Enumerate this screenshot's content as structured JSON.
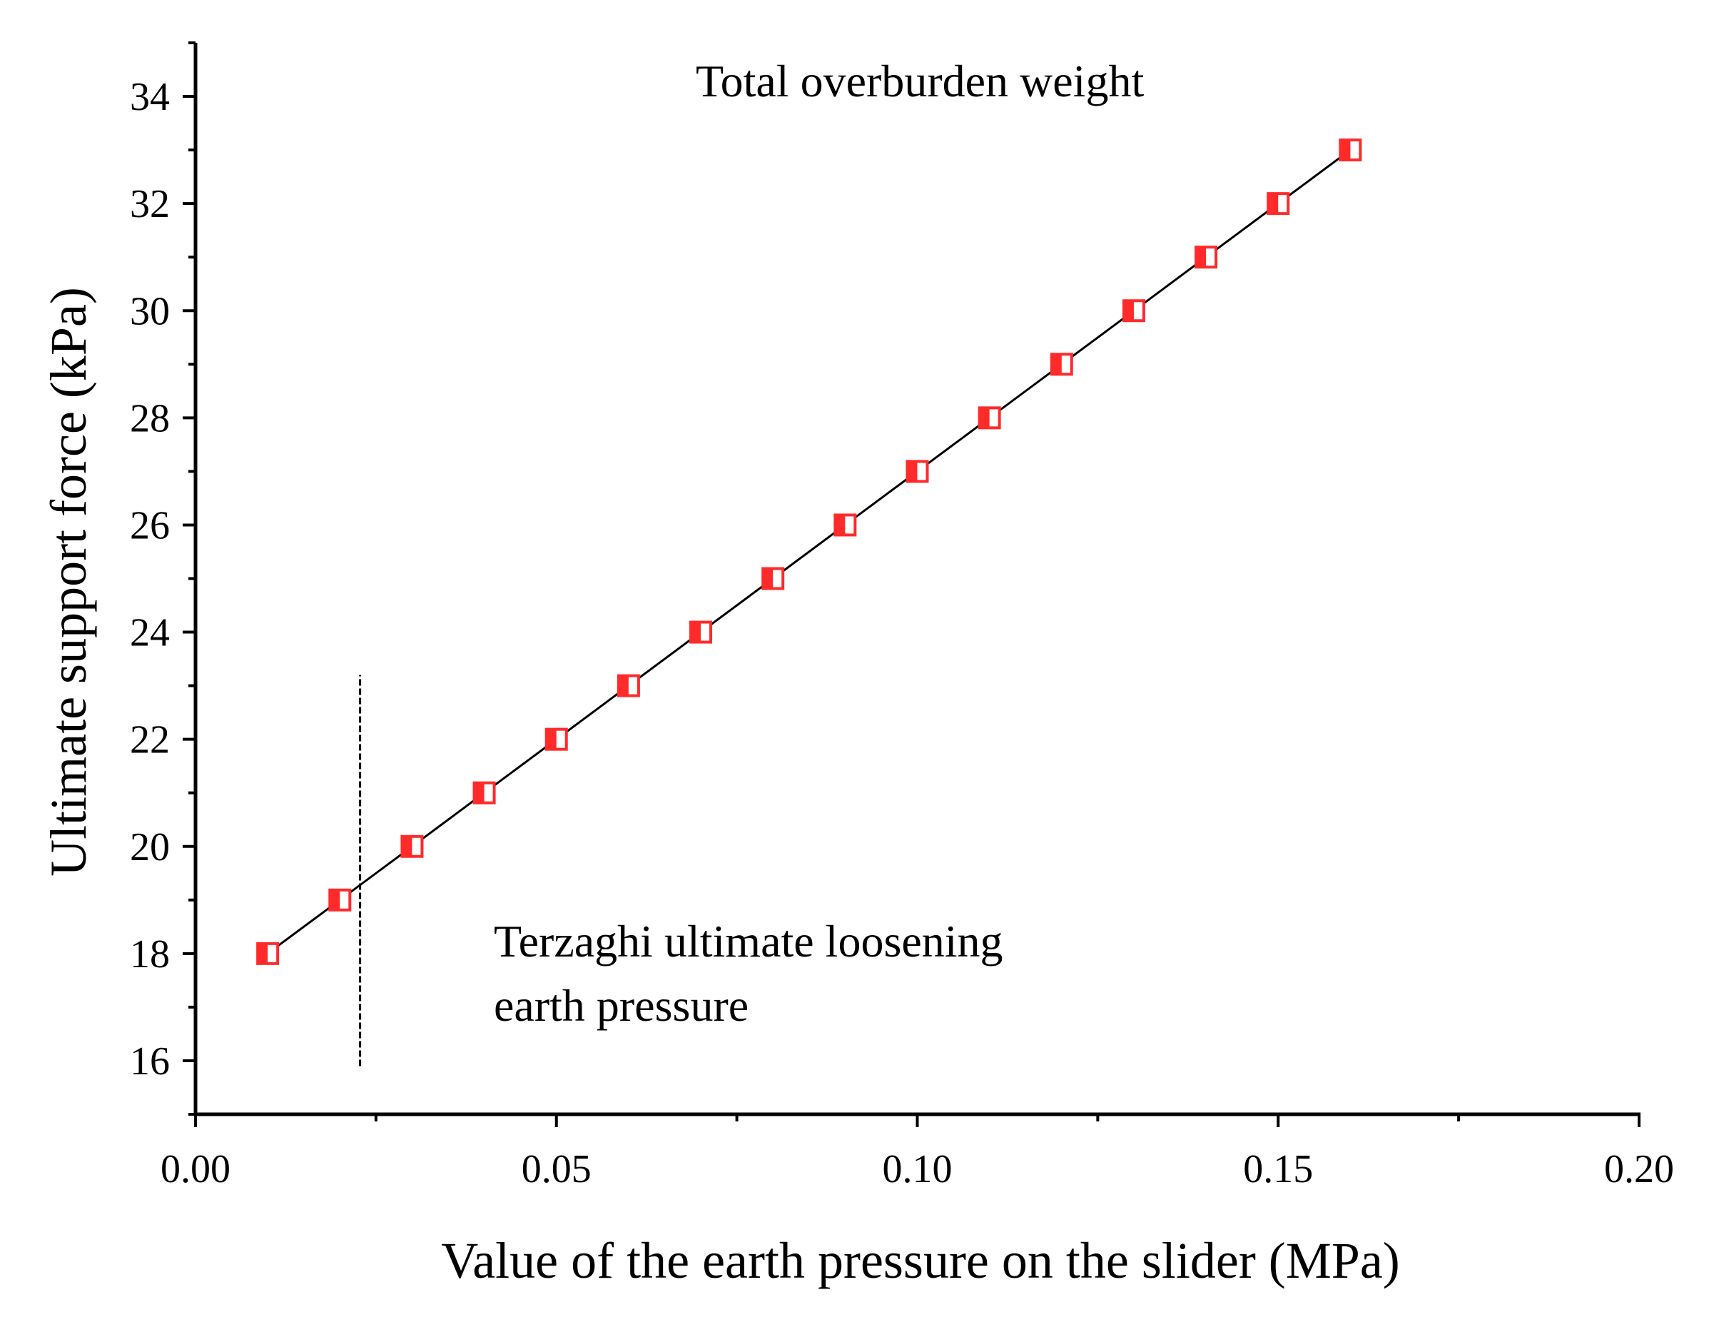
{
  "chart_data": {
    "type": "scatter",
    "title": "",
    "xlabel": "Value of the earth pressure on the slider (MPa)",
    "ylabel": "Ultimate support force (kPa)",
    "xlim": [
      0.0,
      0.2
    ],
    "ylim": [
      15.0,
      35.0
    ],
    "x_ticks": [
      "0.00",
      "0.05",
      "0.10",
      "0.15",
      "0.20"
    ],
    "y_ticks": [
      "16",
      "18",
      "20",
      "22",
      "24",
      "26",
      "28",
      "30",
      "32",
      "34"
    ],
    "x_tick_values": [
      0.0,
      0.05,
      0.1,
      0.15,
      0.2
    ],
    "y_tick_values": [
      16,
      18,
      20,
      22,
      24,
      26,
      28,
      30,
      32,
      34
    ],
    "grid": false,
    "series": [
      {
        "name": "Ultimate support force",
        "marker": "half-filled-square",
        "color": "#ff2a2a",
        "line_color": "#000000",
        "x": [
          0.01,
          0.02,
          0.03,
          0.04,
          0.05,
          0.06,
          0.07,
          0.08,
          0.09,
          0.1,
          0.11,
          0.12,
          0.13,
          0.14,
          0.15,
          0.16
        ],
        "y": [
          18,
          19,
          20,
          21,
          22,
          23,
          24,
          25,
          26,
          27,
          28,
          29,
          30,
          31,
          32,
          33
        ]
      }
    ],
    "reference_line": {
      "style": "dashed",
      "x": 0.0228,
      "y_range": [
        15.9,
        23.2
      ]
    },
    "annotations": {
      "top": "Total overburden weight",
      "bottom_line1": "Terzaghi ultimate loosening",
      "bottom_line2": "earth pressure"
    }
  }
}
